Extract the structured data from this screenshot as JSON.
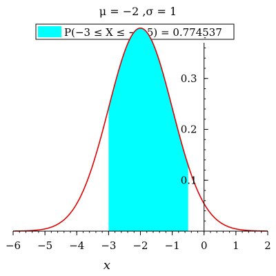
{
  "chart_data": {
    "type": "area",
    "title": "μ = −2 ,σ = 1",
    "xlabel": "x",
    "ylabel": "",
    "xlim": [
      -6,
      2
    ],
    "ylim": [
      0,
      0.4
    ],
    "x_ticks": [
      -6,
      -5,
      -4,
      -3,
      -2,
      -1,
      0,
      1,
      2
    ],
    "x_tick_labels": [
      "−6",
      "−5",
      "−4",
      "−3",
      "−2",
      "−1",
      "0",
      "1",
      "2"
    ],
    "y_ticks": [
      0.1,
      0.2,
      0.3
    ],
    "y_tick_labels": [
      "0.1",
      "0.2",
      "0.3"
    ],
    "distribution": {
      "name": "normal",
      "mu": -2,
      "sigma": 1
    },
    "shaded_region": {
      "from": -3,
      "to": -0.5
    },
    "legend": {
      "placement": "top-center",
      "label": "P(−3 ≤ X ≤ −0.5) = 0.774537",
      "probability": 0.774537
    },
    "grid": false,
    "colors": {
      "curve": "#e00000",
      "fill": "#00ffff",
      "axis": "#000000"
    }
  }
}
